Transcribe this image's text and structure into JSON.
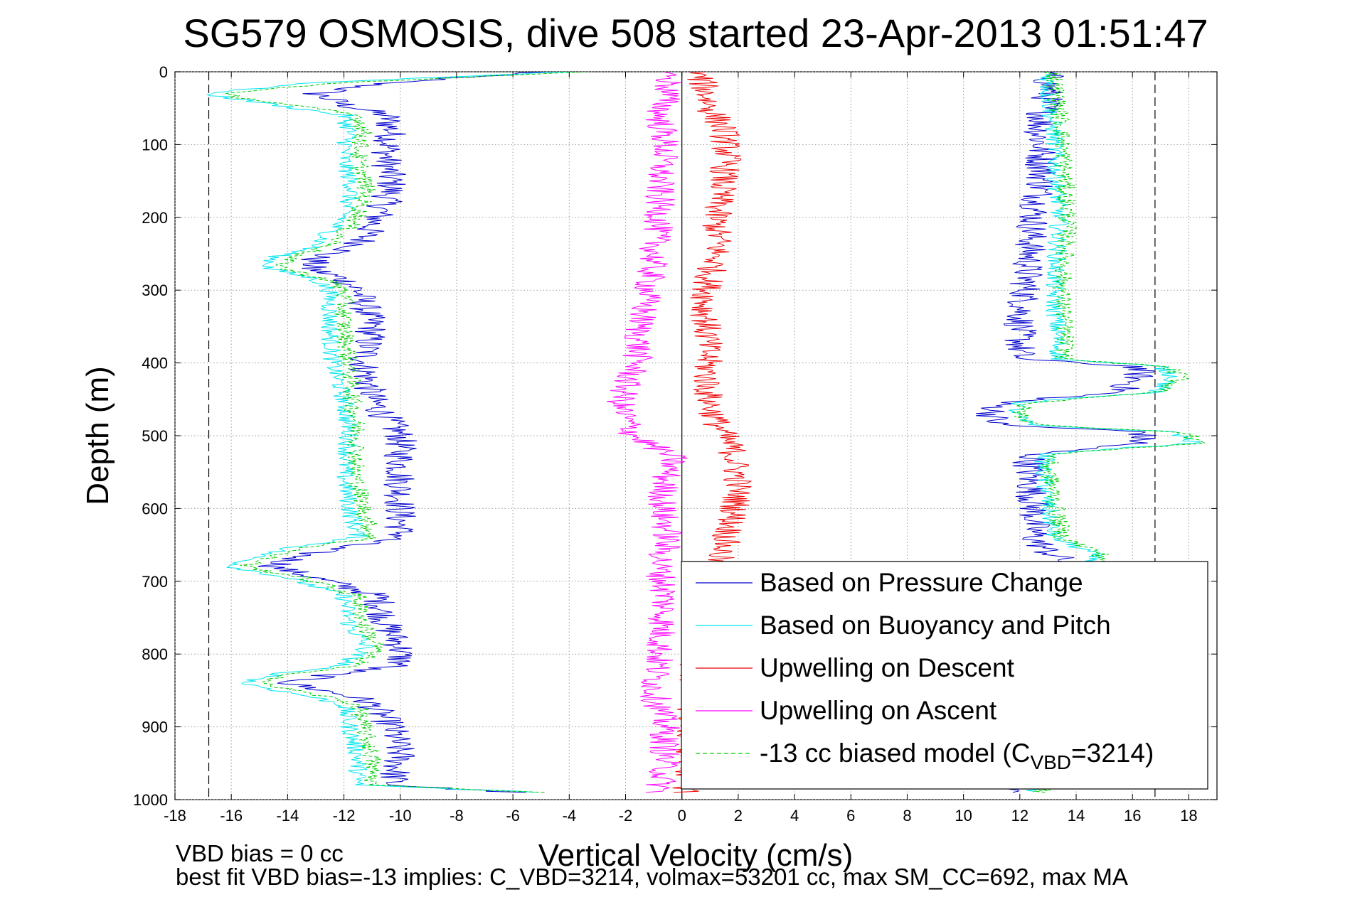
{
  "chart_data": {
    "type": "line",
    "title": "SG579 OSMOSIS, dive 508 started 23-Apr-2013 01:51:47",
    "xlabel": "Vertical Velocity (cm/s)",
    "ylabel": "Depth (m)",
    "xlim": [
      -18,
      19
    ],
    "ylim": [
      0,
      1000
    ],
    "y_reversed": true,
    "grid": true,
    "xticks": [
      "-18",
      "-16",
      "-14",
      "-12",
      "-10",
      "-8",
      "-6",
      "-4",
      "-2",
      "0",
      "2",
      "4",
      "6",
      "8",
      "10",
      "12",
      "14",
      "16",
      "18"
    ],
    "yticks": [
      "0",
      "100",
      "200",
      "300",
      "400",
      "500",
      "600",
      "700",
      "800",
      "900",
      "1000"
    ],
    "reference_lines": {
      "zero_x": 0,
      "dashed_limits": [
        -16.8,
        16.8
      ]
    },
    "legend_position": "lower-right",
    "legend": [
      {
        "label": "Based on Pressure Change",
        "color": "#0000cc"
      },
      {
        "label": "Based on Buoyancy and Pitch",
        "color": "#00e5ee"
      },
      {
        "label": "Upwelling on Descent",
        "color": "#ee0000"
      },
      {
        "label": "Upwelling on Ascent",
        "color": "#ff00ff"
      },
      {
        "label": "-13 cc biased model (C",
        "label_sub": "VBD",
        "label_tail": "=3214)",
        "color": "#00cc00",
        "dashed": true
      }
    ],
    "series": [
      {
        "name": "Based on Pressure Change",
        "color": "#0000cc",
        "descent": {
          "depth": [
            0,
            15,
            30,
            45,
            60,
            80,
            120,
            160,
            200,
            240,
            255,
            270,
            285,
            300,
            350,
            400,
            450,
            500,
            550,
            600,
            640,
            655,
            665,
            680,
            695,
            720,
            760,
            790,
            815,
            825,
            840,
            860,
            870,
            900,
            940,
            980,
            990
          ],
          "velocity": [
            -5,
            -10.5,
            -13,
            -12,
            -10.5,
            -10.3,
            -10.5,
            -10.3,
            -10.8,
            -11.5,
            -13,
            -13.2,
            -12,
            -11.5,
            -11,
            -11.3,
            -11,
            -10,
            -10,
            -10,
            -10,
            -12.5,
            -13.5,
            -14.5,
            -13,
            -10.8,
            -10.5,
            -10,
            -10,
            -12,
            -14,
            -11.5,
            -11,
            -10.3,
            -10,
            -10.3,
            -6
          ]
        },
        "ascent": {
          "depth": [
            0,
            30,
            80,
            150,
            200,
            260,
            300,
            350,
            395,
            405,
            420,
            440,
            455,
            470,
            485,
            495,
            510,
            525,
            540,
            600,
            640,
            660,
            680,
            700,
            990
          ],
          "velocity": [
            13,
            13,
            12.7,
            12.8,
            12.5,
            12.3,
            12.2,
            12,
            12,
            16.2,
            16.2,
            15.5,
            11.3,
            11,
            11.2,
            16.4,
            16.2,
            12.5,
            12.3,
            12.5,
            12.5,
            13,
            14,
            13.5,
            12
          ]
        }
      },
      {
        "name": "Based on Buoyancy and Pitch",
        "color": "#00e5ee",
        "descent": {
          "depth": [
            0,
            15,
            30,
            45,
            60,
            80,
            120,
            160,
            200,
            240,
            255,
            270,
            285,
            300,
            350,
            400,
            450,
            500,
            550,
            600,
            640,
            655,
            665,
            680,
            695,
            720,
            760,
            790,
            815,
            825,
            840,
            860,
            870,
            900,
            940,
            980,
            990
          ],
          "velocity": [
            -4,
            -13,
            -17,
            -14.5,
            -12,
            -11.8,
            -12,
            -11.7,
            -12,
            -13,
            -14.5,
            -14.7,
            -13,
            -12.5,
            -12.5,
            -12.4,
            -12,
            -11.8,
            -12,
            -11.8,
            -11.5,
            -14,
            -15,
            -16,
            -14,
            -12,
            -11.8,
            -11.2,
            -12,
            -14,
            -15.6,
            -13,
            -12,
            -11.8,
            -11.5,
            -11.5,
            -5
          ]
        },
        "ascent": {
          "depth": [
            0,
            30,
            80,
            150,
            200,
            260,
            300,
            350,
            395,
            405,
            420,
            440,
            455,
            470,
            485,
            495,
            510,
            525,
            540,
            600,
            640,
            660,
            680,
            700,
            990
          ],
          "velocity": [
            13,
            13,
            13.2,
            13.3,
            13.4,
            13.3,
            13.2,
            13.3,
            13.4,
            17,
            17.5,
            16.8,
            12,
            11.8,
            12.3,
            17.5,
            18.2,
            13,
            12.8,
            13,
            13.2,
            14.5,
            14.8,
            14,
            12.5
          ]
        }
      },
      {
        "name": "Upwelling on Descent",
        "color": "#ee0000",
        "depth": [
          0,
          20,
          50,
          80,
          120,
          160,
          200,
          240,
          280,
          320,
          360,
          400,
          440,
          480,
          520,
          560,
          600,
          640,
          660,
          680,
          700,
          740,
          800,
          850,
          900,
          950,
          990
        ],
        "velocity": [
          0.5,
          0.8,
          1.0,
          1.5,
          1.6,
          1.4,
          1.2,
          1.3,
          1.0,
          0.8,
          0.9,
          0.9,
          0.9,
          1.2,
          1.8,
          2.0,
          1.9,
          1.6,
          1.4,
          1.2,
          0.8,
          0.6,
          0.5,
          0.4,
          0.3,
          0.3,
          0.2
        ]
      },
      {
        "name": "Upwelling on Ascent",
        "color": "#ff00ff",
        "depth": [
          0,
          30,
          60,
          100,
          150,
          200,
          250,
          300,
          350,
          400,
          430,
          460,
          500,
          530,
          560,
          600,
          640,
          680,
          720,
          760,
          800,
          850,
          900,
          950,
          990
        ],
        "velocity": [
          -0.5,
          -0.5,
          -0.8,
          -0.6,
          -0.8,
          -0.8,
          -1.0,
          -1.2,
          -1.5,
          -1.6,
          -2.0,
          -2.2,
          -1.7,
          -0.3,
          -0.6,
          -0.7,
          -0.5,
          -0.8,
          -0.6,
          -0.7,
          -0.8,
          -1.0,
          -0.6,
          -0.6,
          -0.8
        ]
      },
      {
        "name": "-13 cc biased model (CVBD=3214)",
        "color": "#00cc00",
        "dashed": true,
        "descent": {
          "depth": [
            0,
            15,
            30,
            45,
            60,
            80,
            120,
            160,
            200,
            240,
            255,
            270,
            285,
            300,
            350,
            400,
            450,
            500,
            550,
            600,
            640,
            655,
            665,
            680,
            695,
            720,
            760,
            790,
            815,
            825,
            840,
            860,
            870,
            900,
            940,
            980,
            990
          ],
          "velocity": [
            -3.5,
            -12,
            -16.5,
            -14,
            -11.5,
            -11.3,
            -11.5,
            -11.2,
            -11.5,
            -12.5,
            -14,
            -14.2,
            -12.6,
            -12,
            -12,
            -11.8,
            -11.7,
            -11.5,
            -11.6,
            -11.3,
            -11,
            -13.5,
            -14.5,
            -15.5,
            -13.5,
            -11.5,
            -11.3,
            -10.8,
            -11.5,
            -13.5,
            -15,
            -12.5,
            -11.5,
            -11.3,
            -11,
            -11,
            -5
          ]
        },
        "ascent": {
          "depth": [
            0,
            30,
            80,
            150,
            200,
            260,
            300,
            350,
            395,
            405,
            420,
            440,
            455,
            470,
            485,
            495,
            510,
            525,
            540,
            600,
            640,
            660,
            680,
            700,
            990
          ],
          "velocity": [
            13.2,
            13.3,
            13.5,
            13.6,
            13.7,
            13.6,
            13.5,
            13.6,
            13.6,
            17.2,
            17.8,
            17,
            12.2,
            12,
            12.5,
            17.8,
            18.5,
            13.2,
            13,
            13.3,
            13.5,
            14.8,
            15.2,
            14.2,
            12.8
          ]
        }
      }
    ],
    "footer": {
      "line1": "VBD bias = 0 cc",
      "line2": "best fit VBD bias=-13 implies: C_VBD=3214, volmax=53201 cc, max SM_CC=692, max MA"
    }
  }
}
